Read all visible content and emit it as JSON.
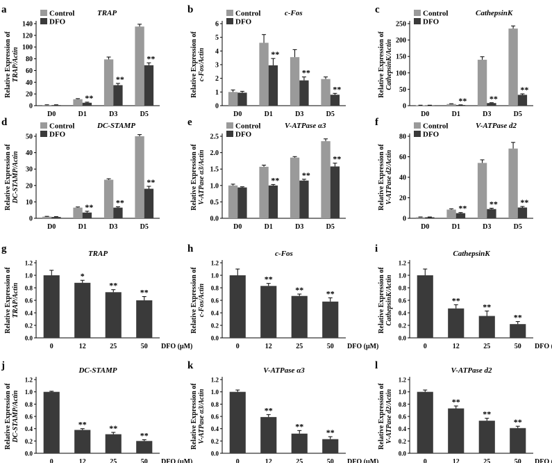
{
  "colors": {
    "control": "#9a9a9a",
    "dfo": "#3a3a3a",
    "single": "#3a3a3a",
    "axis": "#000000"
  },
  "legend_labels": {
    "control": "Control",
    "dfo": "DFO"
  },
  "chart_data": [
    {
      "panel": "a",
      "type": "bar",
      "title": "TRAP",
      "ylabel": [
        "Relative Expression of",
        "TRAP/Actin"
      ],
      "xlabel": "",
      "ylim": [
        0,
        140
      ],
      "yticks": [
        0,
        20,
        40,
        60,
        80,
        100,
        120,
        140
      ],
      "categories": [
        "D0",
        "D1",
        "D3",
        "D5"
      ],
      "series": [
        {
          "name": "Control",
          "values": [
            1,
            11,
            79,
            135
          ],
          "errors": [
            0.5,
            1,
            4,
            4
          ]
        },
        {
          "name": "DFO",
          "values": [
            1,
            5,
            35,
            69
          ],
          "errors": [
            0.5,
            1,
            3,
            4
          ]
        }
      ],
      "annotations": [
        "",
        "**",
        "**",
        "**"
      ]
    },
    {
      "panel": "b",
      "type": "bar",
      "title": "c-Fos",
      "ylabel": [
        "Relative Expression of",
        "c-Fos/Actin"
      ],
      "xlabel": "",
      "ylim": [
        0,
        6
      ],
      "yticks": [
        0,
        1,
        2,
        3,
        4,
        5,
        6
      ],
      "categories": [
        "D0",
        "D1",
        "D3",
        "D5"
      ],
      "series": [
        {
          "name": "Control",
          "values": [
            1.0,
            4.6,
            3.55,
            1.95
          ],
          "errors": [
            0.15,
            0.6,
            0.55,
            0.15
          ]
        },
        {
          "name": "DFO",
          "values": [
            0.95,
            2.95,
            1.85,
            0.8
          ],
          "errors": [
            0.1,
            0.5,
            0.25,
            0.1
          ]
        }
      ],
      "annotations": [
        "",
        "**",
        "**",
        "**"
      ]
    },
    {
      "panel": "c",
      "type": "bar",
      "title": "CathepsinK",
      "ylabel": [
        "Relative Expression of",
        "CathepsinK/Actin"
      ],
      "xlabel": "",
      "ylim": [
        0,
        250
      ],
      "yticks": [
        0,
        50,
        100,
        150,
        200,
        250
      ],
      "categories": [
        "D0",
        "D1",
        "D3",
        "D5"
      ],
      "series": [
        {
          "name": "Control",
          "values": [
            1,
            5,
            140,
            235
          ],
          "errors": [
            0.5,
            1,
            9,
            8
          ]
        },
        {
          "name": "DFO",
          "values": [
            1,
            2,
            8,
            33
          ],
          "errors": [
            0.5,
            0.5,
            1,
            3
          ]
        }
      ],
      "annotations": [
        "",
        "**",
        "**",
        "**"
      ]
    },
    {
      "panel": "d",
      "type": "bar",
      "title": "DC-STAMP",
      "ylabel": [
        "Relative Expression of",
        "DC-STAMP/Actin"
      ],
      "xlabel": "",
      "ylim": [
        0,
        50
      ],
      "yticks": [
        0,
        10,
        20,
        30,
        40,
        50
      ],
      "categories": [
        "D0",
        "D1",
        "D3",
        "D5"
      ],
      "series": [
        {
          "name": "Control",
          "values": [
            1,
            6.5,
            23.5,
            50
          ],
          "errors": [
            0.2,
            0.4,
            0.6,
            1
          ]
        },
        {
          "name": "DFO",
          "values": [
            0.8,
            3.5,
            6.5,
            18
          ],
          "errors": [
            0.2,
            0.8,
            0.5,
            1.5
          ]
        }
      ],
      "annotations": [
        "",
        "**",
        "**",
        "**"
      ]
    },
    {
      "panel": "e",
      "type": "bar",
      "title": "V-ATPase α3",
      "ylabel": [
        "Relative Expression of",
        "V-ATPase α3/Actin"
      ],
      "xlabel": "",
      "ylim": [
        0,
        2.5
      ],
      "yticks": [
        0,
        0.5,
        1,
        1.5,
        2,
        2.5
      ],
      "categories": [
        "D0",
        "D1",
        "D3",
        "D5"
      ],
      "series": [
        {
          "name": "Control",
          "values": [
            1.0,
            1.57,
            1.85,
            2.35
          ],
          "errors": [
            0.04,
            0.05,
            0.03,
            0.07
          ]
        },
        {
          "name": "DFO",
          "values": [
            0.94,
            1.0,
            1.15,
            1.58
          ],
          "errors": [
            0.02,
            0.03,
            0.04,
            0.1
          ]
        }
      ],
      "annotations": [
        "",
        "**",
        "**",
        "**"
      ]
    },
    {
      "panel": "f",
      "type": "bar",
      "title": "V-ATPase d2",
      "ylabel": [
        "Relative Expression of",
        "V-ATPase d2/Actin"
      ],
      "xlabel": "",
      "ylim": [
        0,
        80
      ],
      "yticks": [
        0,
        20,
        40,
        60,
        80
      ],
      "categories": [
        "D0",
        "D1",
        "D3",
        "D5"
      ],
      "series": [
        {
          "name": "Control",
          "values": [
            1,
            8.5,
            54,
            68
          ],
          "errors": [
            0.3,
            0.8,
            3,
            6
          ]
        },
        {
          "name": "DFO",
          "values": [
            1,
            5,
            9,
            10.5
          ],
          "errors": [
            0.3,
            0.6,
            0.8,
            1
          ]
        }
      ],
      "annotations": [
        "",
        "**",
        "**",
        "**"
      ]
    },
    {
      "panel": "g",
      "type": "bar",
      "title": "TRAP",
      "ylabel": [
        "Relative Expression of",
        "TRAP/Actin"
      ],
      "xlabel": "DFO (μM)",
      "ylim": [
        0,
        1.2
      ],
      "yticks": [
        0,
        0.2,
        0.4,
        0.6,
        0.8,
        1.0,
        1.2
      ],
      "categories": [
        "0",
        "12",
        "25",
        "50"
      ],
      "series": [
        {
          "name": "DFO",
          "values": [
            1.0,
            0.88,
            0.73,
            0.6
          ],
          "errors": [
            0.08,
            0.04,
            0.04,
            0.06
          ]
        }
      ],
      "annotations": [
        "",
        "*",
        "**",
        "**"
      ]
    },
    {
      "panel": "h",
      "type": "bar",
      "title": "c-Fos",
      "ylabel": [
        "Relative Expression of",
        "c-Fos/Actin"
      ],
      "xlabel": "DFO (μM)",
      "ylim": [
        0,
        1.2
      ],
      "yticks": [
        0,
        0.2,
        0.4,
        0.6,
        0.8,
        1.0,
        1.2
      ],
      "categories": [
        "0",
        "12",
        "25",
        "50"
      ],
      "series": [
        {
          "name": "DFO",
          "values": [
            1.0,
            0.83,
            0.67,
            0.58
          ],
          "errors": [
            0.1,
            0.04,
            0.03,
            0.06
          ]
        }
      ],
      "annotations": [
        "",
        "**",
        "**",
        "**"
      ]
    },
    {
      "panel": "i",
      "type": "bar",
      "title": "CathepsinK",
      "ylabel": [
        "Relative Expression of",
        "CathepsinK/Actin"
      ],
      "xlabel": "DFO (μM)",
      "ylim": [
        0,
        1.2
      ],
      "yticks": [
        0,
        0.2,
        0.4,
        0.6,
        0.8,
        1.0,
        1.2
      ],
      "categories": [
        "0",
        "12",
        "25",
        "50"
      ],
      "series": [
        {
          "name": "DFO",
          "values": [
            1.0,
            0.47,
            0.35,
            0.22
          ],
          "errors": [
            0.1,
            0.06,
            0.08,
            0.04
          ]
        }
      ],
      "annotations": [
        "",
        "**",
        "**",
        "**"
      ]
    },
    {
      "panel": "j",
      "type": "bar",
      "title": "DC-STAMP",
      "ylabel": [
        "Relative Expression of",
        "DC-STAMP/Actin"
      ],
      "xlabel": "DFO (μM)",
      "ylim": [
        0,
        1.2
      ],
      "yticks": [
        0,
        0.2,
        0.4,
        0.6,
        0.8,
        1.0,
        1.2
      ],
      "categories": [
        "0",
        "12",
        "25",
        "50"
      ],
      "series": [
        {
          "name": "DFO",
          "values": [
            1.0,
            0.38,
            0.31,
            0.2
          ],
          "errors": [
            0.01,
            0.02,
            0.03,
            0.02
          ]
        }
      ],
      "annotations": [
        "",
        "**",
        "**",
        "**"
      ]
    },
    {
      "panel": "k",
      "type": "bar",
      "title": "V-ATPase α3",
      "ylabel": [
        "Relative Expression of",
        "V-ATPase α3/Actin"
      ],
      "xlabel": "DFO (μM)",
      "ylim": [
        0,
        1.2
      ],
      "yticks": [
        0,
        0.2,
        0.4,
        0.6,
        0.8,
        1.0,
        1.2
      ],
      "categories": [
        "0",
        "12",
        "25",
        "50"
      ],
      "series": [
        {
          "name": "DFO",
          "values": [
            1.0,
            0.59,
            0.32,
            0.23
          ],
          "errors": [
            0.03,
            0.04,
            0.05,
            0.04
          ]
        }
      ],
      "annotations": [
        "",
        "**",
        "**",
        "**"
      ]
    },
    {
      "panel": "l",
      "type": "bar",
      "title": "V-ATPase d2",
      "ylabel": [
        "Relative Expression of",
        "V-ATPase d2/Actin"
      ],
      "xlabel": "DFO (μM)",
      "ylim": [
        0,
        1.2
      ],
      "yticks": [
        0,
        0.2,
        0.4,
        0.6,
        0.8,
        1.0,
        1.2
      ],
      "categories": [
        "0",
        "12",
        "25",
        "50"
      ],
      "series": [
        {
          "name": "DFO",
          "values": [
            1.0,
            0.73,
            0.53,
            0.41
          ],
          "errors": [
            0.03,
            0.04,
            0.04,
            0.03
          ]
        }
      ],
      "annotations": [
        "",
        "**",
        "**",
        "**"
      ]
    }
  ]
}
